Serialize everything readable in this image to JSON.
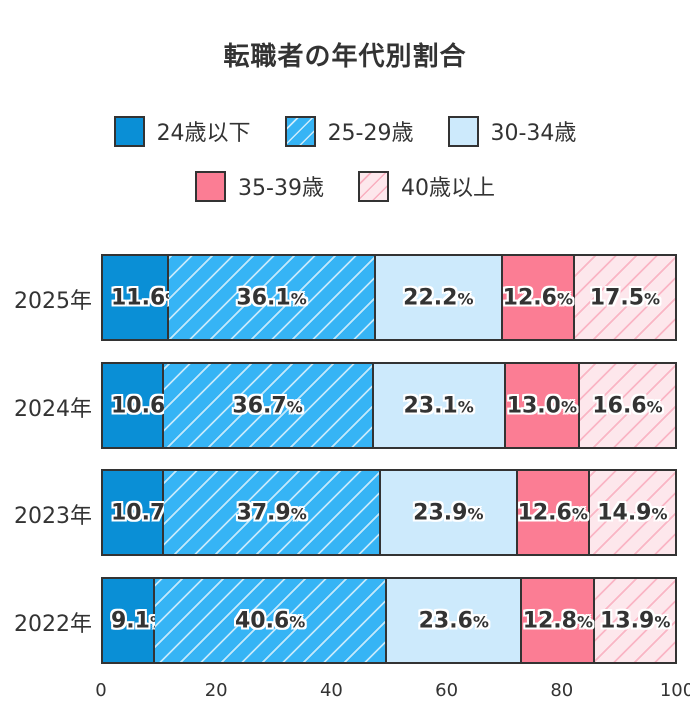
{
  "title": "転職者の年代別割合",
  "legend": [
    {
      "label": "24歳以下",
      "color": "#0a8fd6",
      "pattern": "solid"
    },
    {
      "label": "25-29歳",
      "color": "#36b4f5",
      "pattern": "hatch-white"
    },
    {
      "label": "30-34歳",
      "color": "#cdeafc",
      "pattern": "solid"
    },
    {
      "label": "35-39歳",
      "color": "#fb7d94",
      "pattern": "solid"
    },
    {
      "label": "40歳以上",
      "color": "#fde7ec",
      "pattern": "hatch-pink"
    }
  ],
  "chart_data": {
    "type": "bar",
    "orientation": "horizontal",
    "stacked": true,
    "title": "転職者の年代別割合",
    "categories": [
      "2025年",
      "2024年",
      "2023年",
      "2022年"
    ],
    "series": [
      {
        "name": "24歳以下",
        "values": [
          11.6,
          10.6,
          10.7,
          9.1
        ]
      },
      {
        "name": "25-29歳",
        "values": [
          36.1,
          36.7,
          37.9,
          40.6
        ]
      },
      {
        "name": "30-34歳",
        "values": [
          22.2,
          23.1,
          23.9,
          23.6
        ]
      },
      {
        "name": "35-39歳",
        "values": [
          12.6,
          13.0,
          12.6,
          12.8
        ]
      },
      {
        "name": "40歳以上",
        "values": [
          17.5,
          16.6,
          14.9,
          13.9
        ]
      }
    ],
    "xlabel": "",
    "ylabel": "",
    "xlim": [
      0,
      100
    ],
    "xticks": [
      "0",
      "20",
      "40",
      "60",
      "80",
      "100"
    ],
    "value_suffix": "%",
    "grid": false,
    "legend_position": "top"
  },
  "rows": [
    {
      "label": "2025年",
      "values": [
        "11.6",
        "36.1",
        "22.2",
        "12.6",
        "17.5"
      ]
    },
    {
      "label": "2024年",
      "values": [
        "10.6",
        "36.7",
        "23.1",
        "13.0",
        "16.6"
      ]
    },
    {
      "label": "2023年",
      "values": [
        "10.7",
        "37.9",
        "23.9",
        "12.6",
        "14.9"
      ]
    },
    {
      "label": "2022年",
      "values": [
        "9.1",
        "40.6",
        "23.6",
        "12.8",
        "13.9"
      ]
    }
  ],
  "pct_symbol": "%"
}
